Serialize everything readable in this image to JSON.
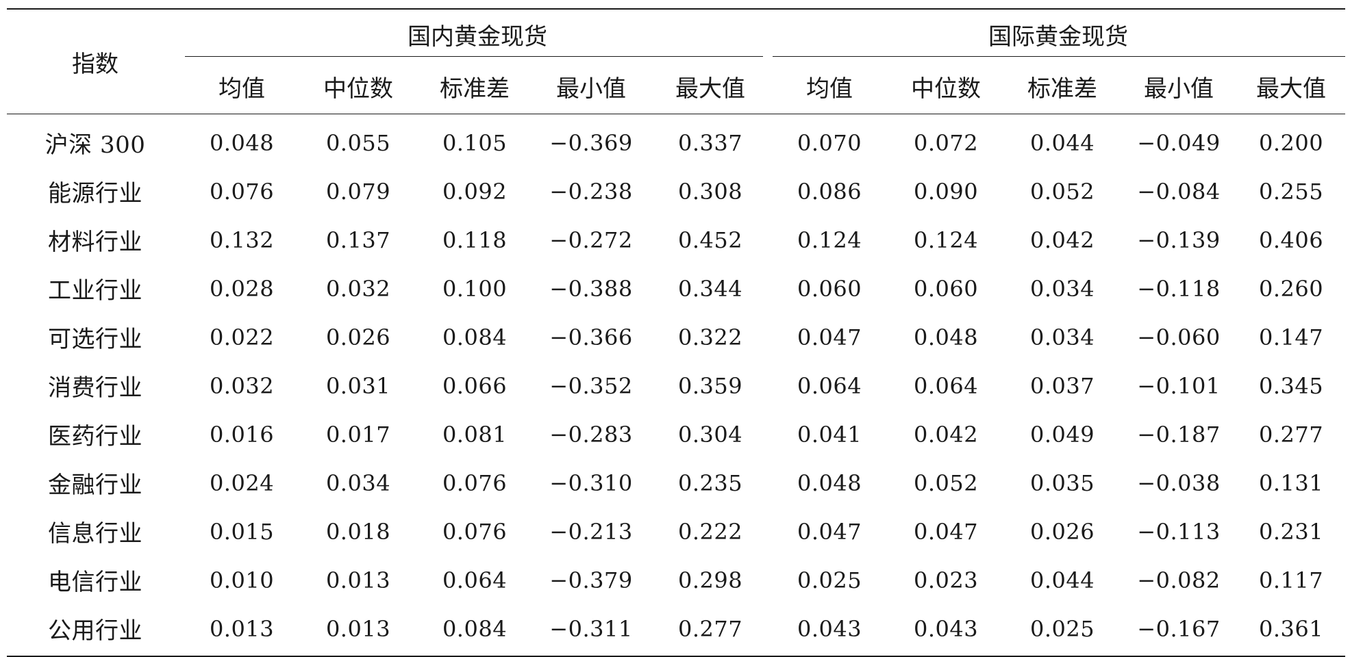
{
  "table": {
    "index_header": "指数",
    "groups": [
      "国内黄金现货",
      "国际黄金现货"
    ],
    "sub_headers": [
      "均值",
      "中位数",
      "标准差",
      "最小值",
      "最大值"
    ],
    "rows": [
      {
        "name": "沪深 300",
        "domestic": [
          "0.048",
          "0.055",
          "0.105",
          "−0.369",
          "0.337"
        ],
        "international": [
          "0.070",
          "0.072",
          "0.044",
          "−0.049",
          "0.200"
        ]
      },
      {
        "name": "能源行业",
        "domestic": [
          "0.076",
          "0.079",
          "0.092",
          "−0.238",
          "0.308"
        ],
        "international": [
          "0.086",
          "0.090",
          "0.052",
          "−0.084",
          "0.255"
        ]
      },
      {
        "name": "材料行业",
        "domestic": [
          "0.132",
          "0.137",
          "0.118",
          "−0.272",
          "0.452"
        ],
        "international": [
          "0.124",
          "0.124",
          "0.042",
          "−0.139",
          "0.406"
        ]
      },
      {
        "name": "工业行业",
        "domestic": [
          "0.028",
          "0.032",
          "0.100",
          "−0.388",
          "0.344"
        ],
        "international": [
          "0.060",
          "0.060",
          "0.034",
          "−0.118",
          "0.260"
        ]
      },
      {
        "name": "可选行业",
        "domestic": [
          "0.022",
          "0.026",
          "0.084",
          "−0.366",
          "0.322"
        ],
        "international": [
          "0.047",
          "0.048",
          "0.034",
          "−0.060",
          "0.147"
        ]
      },
      {
        "name": "消费行业",
        "domestic": [
          "0.032",
          "0.031",
          "0.066",
          "−0.352",
          "0.359"
        ],
        "international": [
          "0.064",
          "0.064",
          "0.037",
          "−0.101",
          "0.345"
        ]
      },
      {
        "name": "医药行业",
        "domestic": [
          "0.016",
          "0.017",
          "0.081",
          "−0.283",
          "0.304"
        ],
        "international": [
          "0.041",
          "0.042",
          "0.049",
          "−0.187",
          "0.277"
        ]
      },
      {
        "name": "金融行业",
        "domestic": [
          "0.024",
          "0.034",
          "0.076",
          "−0.310",
          "0.235"
        ],
        "international": [
          "0.048",
          "0.052",
          "0.035",
          "−0.038",
          "0.131"
        ]
      },
      {
        "name": "信息行业",
        "domestic": [
          "0.015",
          "0.018",
          "0.076",
          "−0.213",
          "0.222"
        ],
        "international": [
          "0.047",
          "0.047",
          "0.026",
          "−0.113",
          "0.231"
        ]
      },
      {
        "name": "电信行业",
        "domestic": [
          "0.010",
          "0.013",
          "0.064",
          "−0.379",
          "0.298"
        ],
        "international": [
          "0.025",
          "0.023",
          "0.044",
          "−0.082",
          "0.117"
        ]
      },
      {
        "name": "公用行业",
        "domestic": [
          "0.013",
          "0.013",
          "0.084",
          "−0.311",
          "0.277"
        ],
        "international": [
          "0.043",
          "0.043",
          "0.025",
          "−0.167",
          "0.361"
        ]
      }
    ]
  }
}
